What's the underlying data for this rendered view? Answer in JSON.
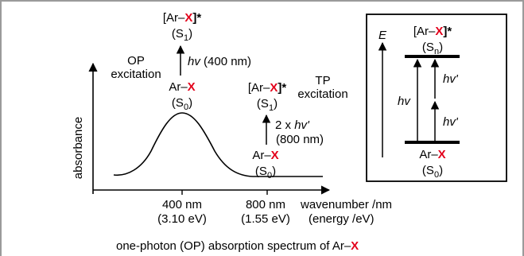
{
  "colors": {
    "accent_red": "#e3001b",
    "frame_gray": "#9a9a9a"
  },
  "main_diagram": {
    "y_axis_label": "absorbance",
    "x_axis_label_line1": "wavenumber /nm",
    "x_axis_label_line2": "(energy /eV)",
    "tick1_line1": "400 nm",
    "tick1_line2": "(3.10 eV)",
    "tick2_line1": "800 nm",
    "tick2_line2": "(1.55 eV)",
    "op_label_line1": "OP",
    "op_label_line2": "excitation",
    "tp_label_line1": "TP",
    "tp_label_line2": "excitation",
    "op_upper_prefix": "[Ar–",
    "op_upper_x": "X",
    "op_upper_suffix": "]*",
    "op_upper_state_letter": "S",
    "op_upper_state_sub": "1",
    "op_photon_hv": "hv",
    "op_photon_text": " (400 nm)",
    "op_lower_prefix": "Ar–",
    "op_lower_x": "X",
    "op_lower_state_letter": "S",
    "op_lower_state_sub": "0",
    "tp_upper_prefix": "[Ar–",
    "tp_upper_x": "X",
    "tp_upper_suffix": "]*",
    "tp_upper_state_letter": "S",
    "tp_upper_state_sub": "1",
    "tp_photon_prefix": "2 x ",
    "tp_photon_hv": "hv'",
    "tp_photon_line2": "(800 nm)",
    "tp_lower_prefix": "Ar–",
    "tp_lower_x": "X",
    "tp_lower_state_letter": "S",
    "tp_lower_state_sub": "0",
    "caption_prefix": "one-photon (OP) absorption spectrum of Ar–",
    "caption_x": "X"
  },
  "inset": {
    "energy_label": "E",
    "upper_prefix": "[Ar–",
    "upper_x": "X",
    "upper_suffix": "]*",
    "upper_state_letter": "S",
    "upper_state_sub": "n",
    "hv_label": "hv",
    "hv_prime_top": "hv'",
    "hv_prime_bottom": "hv'",
    "lower_prefix": "Ar–",
    "lower_x": "X",
    "lower_state_letter": "S",
    "lower_state_sub": "0"
  }
}
